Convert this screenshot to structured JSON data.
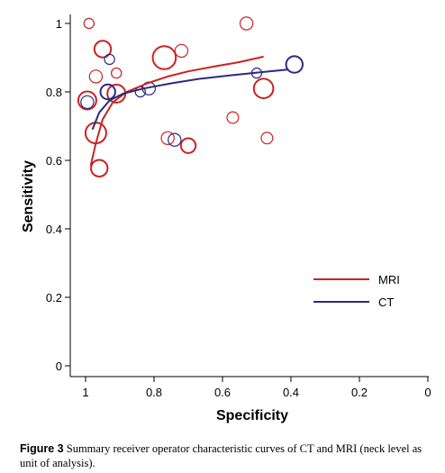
{
  "chart_data": {
    "type": "scatter",
    "title": "",
    "xlabel": "Specificity",
    "ylabel": "Sensitivity",
    "xlim": [
      1.05,
      0.0
    ],
    "ylim": [
      0.0,
      1.0
    ],
    "x_reversed": true,
    "x_ticks": [
      1,
      0.8,
      0.6,
      0.4,
      0.2,
      0
    ],
    "x_tick_labels": [
      "1",
      "0.8",
      "0.6",
      "0.4",
      "0.2",
      "0"
    ],
    "y_ticks": [
      0,
      0.2,
      0.4,
      0.6,
      0.8,
      1
    ],
    "y_tick_labels": [
      "0",
      "0.2",
      "0.4",
      "0.6",
      "0.8",
      "1"
    ],
    "grid": false,
    "legend_position": "lower-right",
    "colors": {
      "MRI": "#cc2222",
      "CT": "#2b2b80"
    },
    "series": [
      {
        "name": "MRI",
        "curve": [
          {
            "x": 0.985,
            "y": 0.585
          },
          {
            "x": 0.97,
            "y": 0.65
          },
          {
            "x": 0.95,
            "y": 0.72
          },
          {
            "x": 0.92,
            "y": 0.77
          },
          {
            "x": 0.88,
            "y": 0.8
          },
          {
            "x": 0.82,
            "y": 0.825
          },
          {
            "x": 0.76,
            "y": 0.845
          },
          {
            "x": 0.7,
            "y": 0.86
          },
          {
            "x": 0.62,
            "y": 0.875
          },
          {
            "x": 0.55,
            "y": 0.887
          },
          {
            "x": 0.48,
            "y": 0.903
          }
        ],
        "points": [
          {
            "x": 0.99,
            "y": 1.0,
            "size": 1
          },
          {
            "x": 0.53,
            "y": 1.0,
            "size": 2
          },
          {
            "x": 0.95,
            "y": 0.925,
            "size": 4
          },
          {
            "x": 0.77,
            "y": 0.9,
            "size": 9
          },
          {
            "x": 0.72,
            "y": 0.92,
            "size": 2
          },
          {
            "x": 0.97,
            "y": 0.845,
            "size": 2
          },
          {
            "x": 0.91,
            "y": 0.855,
            "size": 1
          },
          {
            "x": 0.995,
            "y": 0.775,
            "size": 5
          },
          {
            "x": 0.91,
            "y": 0.795,
            "size": 5
          },
          {
            "x": 0.48,
            "y": 0.81,
            "size": 6
          },
          {
            "x": 0.57,
            "y": 0.725,
            "size": 1.5
          },
          {
            "x": 0.97,
            "y": 0.68,
            "size": 7
          },
          {
            "x": 0.76,
            "y": 0.665,
            "size": 2
          },
          {
            "x": 0.47,
            "y": 0.665,
            "size": 1.5
          },
          {
            "x": 0.7,
            "y": 0.643,
            "size": 3
          },
          {
            "x": 0.96,
            "y": 0.577,
            "size": 4
          }
        ]
      },
      {
        "name": "CT",
        "curve": [
          {
            "x": 0.98,
            "y": 0.69
          },
          {
            "x": 0.96,
            "y": 0.74
          },
          {
            "x": 0.93,
            "y": 0.775
          },
          {
            "x": 0.89,
            "y": 0.795
          },
          {
            "x": 0.83,
            "y": 0.81
          },
          {
            "x": 0.75,
            "y": 0.825
          },
          {
            "x": 0.67,
            "y": 0.838
          },
          {
            "x": 0.58,
            "y": 0.848
          },
          {
            "x": 0.49,
            "y": 0.857
          },
          {
            "x": 0.41,
            "y": 0.865
          }
        ],
        "points": [
          {
            "x": 0.39,
            "y": 0.88,
            "size": 4
          },
          {
            "x": 0.93,
            "y": 0.895,
            "size": 1
          },
          {
            "x": 0.935,
            "y": 0.8,
            "size": 3
          },
          {
            "x": 0.815,
            "y": 0.81,
            "size": 2
          },
          {
            "x": 0.84,
            "y": 0.8,
            "size": 1
          },
          {
            "x": 0.74,
            "y": 0.66,
            "size": 2
          },
          {
            "x": 0.5,
            "y": 0.855,
            "size": 1
          },
          {
            "x": 0.995,
            "y": 0.77,
            "size": 2
          }
        ]
      }
    ]
  },
  "caption": {
    "label": "Figure 3",
    "text": " Summary receiver operator characteristic curves of CT and MRI (neck level as unit of analysis)."
  }
}
